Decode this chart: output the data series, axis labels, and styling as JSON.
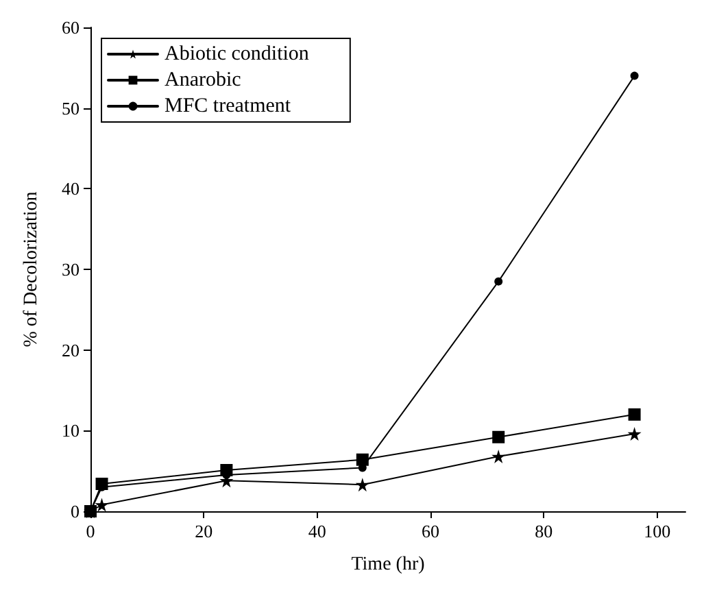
{
  "chart_data": {
    "type": "line",
    "xlabel": "Time (hr)",
    "ylabel": "% of Decolorization",
    "xlim": [
      0,
      105
    ],
    "xticks": [
      0,
      20,
      40,
      60,
      80,
      100
    ],
    "ylim": [
      0,
      60
    ],
    "yticks": [
      0,
      10,
      20,
      30,
      40,
      50,
      60
    ],
    "grid": false,
    "legend": "top left",
    "line_style": "solid",
    "series": [
      {
        "name": "Abiotic condition",
        "color": "#000000",
        "marker": "star",
        "x": [
          0,
          2,
          24,
          48,
          72,
          96
        ],
        "values": [
          0,
          0.8,
          3.8,
          3.3,
          6.8,
          9.6
        ]
      },
      {
        "name": "Anarobic",
        "color": "#000000",
        "marker": "square",
        "x": [
          0,
          2,
          24,
          48,
          72,
          96
        ],
        "values": [
          0,
          3.4,
          5.1,
          6.4,
          9.2,
          12
        ]
      },
      {
        "name": "MFC treatment",
        "color": "#000000",
        "marker": "circle",
        "x": [
          0,
          2,
          24,
          48,
          72,
          96
        ],
        "values": [
          0,
          3,
          4.5,
          5.4,
          28.5,
          54
        ]
      }
    ]
  }
}
